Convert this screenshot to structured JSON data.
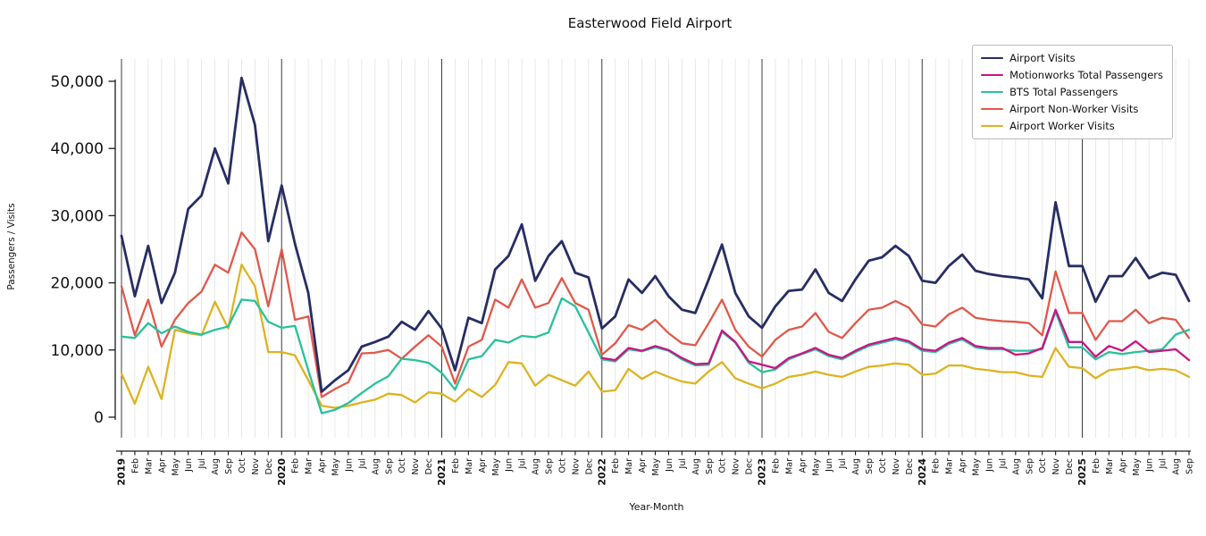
{
  "chart_data": {
    "type": "line",
    "title": "Easterwood Field Airport",
    "xlabel": "Year-Month",
    "ylabel": "Passengers / Visits",
    "ylim": [
      0,
      52000
    ],
    "grid": "vertical-monthly, dark lines at year starts",
    "legend_position": "upper right",
    "yticks": [
      0,
      10000,
      20000,
      30000,
      40000,
      50000
    ],
    "ytick_labels": [
      "0",
      "10,000",
      "20,000",
      "30,000",
      "40,000",
      "50,000"
    ],
    "x_tick_labels": [
      "2019",
      "Feb",
      "Mar",
      "Apr",
      "May",
      "Jun",
      "Jul",
      "Aug",
      "Sep",
      "Oct",
      "Nov",
      "Dec",
      "2020",
      "Feb",
      "Mar",
      "Apr",
      "May",
      "Jun",
      "Jul",
      "Aug",
      "Sep",
      "Oct",
      "Nov",
      "Dec",
      "2021",
      "Feb",
      "Mar",
      "Apr",
      "May",
      "Jun",
      "Jul",
      "Aug",
      "Sep",
      "Oct",
      "Nov",
      "Dec",
      "2022",
      "Feb",
      "Mar",
      "Apr",
      "May",
      "Jun",
      "Jul",
      "Aug",
      "Sep",
      "Oct",
      "Nov",
      "Dec",
      "2023",
      "Feb",
      "Mar",
      "Apr",
      "May",
      "Jun",
      "Jul",
      "Aug",
      "Sep",
      "Oct",
      "Nov",
      "Dec",
      "2024",
      "Feb",
      "Mar",
      "Apr",
      "May",
      "Jun",
      "Jul",
      "Aug",
      "Sep",
      "Oct",
      "Nov",
      "Dec",
      "2025",
      "Feb",
      "Mar",
      "Apr",
      "May",
      "Jun",
      "Jul",
      "Aug",
      "Sep"
    ],
    "series": [
      {
        "name": "Airport Visits",
        "color": "#272d63",
        "line_width": 2.8,
        "values": [
          27000,
          18000,
          25500,
          17000,
          21500,
          31000,
          33000,
          40000,
          34800,
          50500,
          43500,
          26200,
          34500,
          25800,
          18500,
          3800,
          5500,
          7000,
          10500,
          11200,
          12000,
          14200,
          13000,
          15800,
          13200,
          7000,
          14800,
          14000,
          22000,
          24000,
          28700,
          20300,
          24000,
          26200,
          21500,
          20800,
          13200,
          15000,
          20500,
          18500,
          21000,
          18000,
          16000,
          15500,
          20500,
          25700,
          18500,
          15000,
          13300,
          16500,
          18800,
          19000,
          22000,
          18500,
          17300,
          20500,
          23300,
          23800,
          25500,
          24000,
          20300,
          20000,
          22500,
          24200,
          21800,
          21300,
          21000,
          20800,
          20500,
          17700,
          32000,
          22500,
          22500,
          17200,
          21000,
          21000,
          23700,
          20700,
          21500,
          21200,
          17300
        ]
      },
      {
        "name": "Motionworks Total Passengers",
        "color": "#c71585",
        "line_width": 2.3,
        "values": [
          null,
          null,
          null,
          null,
          null,
          null,
          null,
          null,
          null,
          null,
          null,
          null,
          null,
          null,
          null,
          null,
          null,
          null,
          null,
          null,
          null,
          null,
          null,
          null,
          null,
          null,
          null,
          null,
          null,
          null,
          null,
          null,
          null,
          null,
          null,
          null,
          8800,
          8500,
          10300,
          9900,
          10600,
          10000,
          8800,
          7900,
          8000,
          12900,
          11200,
          8300,
          7800,
          7300,
          8800,
          9500,
          10300,
          9300,
          8800,
          9900,
          10800,
          11300,
          11800,
          11300,
          10100,
          9900,
          11100,
          11800,
          10600,
          10300,
          10300,
          9300,
          9500,
          10300,
          16000,
          11200,
          11200,
          9000,
          10600,
          9900,
          11300,
          9700,
          9900,
          10100,
          8500
        ]
      },
      {
        "name": "BTS Total Passengers",
        "color": "#28c19b",
        "line_width": 2.3,
        "values": [
          12000,
          11800,
          14000,
          12500,
          13500,
          12700,
          12300,
          13000,
          13500,
          17500,
          17300,
          14200,
          13300,
          13600,
          7000,
          600,
          1100,
          2100,
          3600,
          5000,
          6100,
          8700,
          8500,
          8100,
          6600,
          4100,
          8600,
          9100,
          11500,
          11100,
          12100,
          11900,
          12600,
          17700,
          16500,
          12600,
          8600,
          8300,
          10100,
          9800,
          10400,
          9900,
          8600,
          7700,
          7800,
          12700,
          11100,
          8100,
          6700,
          7100,
          8600,
          9400,
          10100,
          9100,
          8600,
          9700,
          10600,
          11100,
          11600,
          11100,
          9900,
          9700,
          10900,
          11600,
          10400,
          10100,
          10100,
          9900,
          9900,
          10100,
          15700,
          10400,
          10400,
          8600,
          9700,
          9400,
          9700,
          9900,
          10100,
          12300,
          13000
        ]
      },
      {
        "name": "Airport Non-Worker Visits",
        "color": "#e0584a",
        "line_width": 2.3,
        "values": [
          19500,
          12200,
          17500,
          10500,
          14500,
          17000,
          18700,
          22700,
          21500,
          27500,
          25000,
          16500,
          25000,
          14500,
          15000,
          3000,
          4200,
          5200,
          9500,
          9600,
          10000,
          8700,
          10500,
          12200,
          10500,
          5000,
          10500,
          11500,
          17500,
          16300,
          20500,
          16300,
          17000,
          20700,
          17000,
          16000,
          9300,
          11000,
          13700,
          13000,
          14500,
          12500,
          11000,
          10700,
          14000,
          17500,
          13000,
          10500,
          9000,
          11500,
          13000,
          13500,
          15500,
          12700,
          11800,
          14000,
          16000,
          16300,
          17300,
          16300,
          13800,
          13500,
          15300,
          16300,
          14800,
          14500,
          14300,
          14200,
          14000,
          12200,
          21700,
          15500,
          15500,
          11500,
          14300,
          14300,
          16000,
          14000,
          14800,
          14500,
          11800
        ]
      },
      {
        "name": "Airport Worker Visits",
        "color": "#ddb320",
        "line_width": 2.3,
        "values": [
          6500,
          2000,
          7500,
          2700,
          13000,
          12500,
          12200,
          17200,
          13200,
          22700,
          19500,
          9700,
          9700,
          9200,
          5500,
          1700,
          1400,
          1700,
          2200,
          2600,
          3500,
          3300,
          2200,
          3700,
          3500,
          2300,
          4200,
          3000,
          4800,
          8200,
          8000,
          4700,
          6300,
          5500,
          4700,
          6800,
          3800,
          4000,
          7200,
          5700,
          6800,
          6000,
          5300,
          5000,
          6800,
          8200,
          5800,
          5000,
          4300,
          5000,
          6000,
          6300,
          6800,
          6300,
          6000,
          6800,
          7500,
          7700,
          8000,
          7800,
          6300,
          6500,
          7700,
          7700,
          7200,
          7000,
          6700,
          6700,
          6200,
          6000,
          10300,
          7500,
          7300,
          5800,
          7000,
          7200,
          7500,
          7000,
          7200,
          7000,
          6000
        ]
      }
    ]
  }
}
